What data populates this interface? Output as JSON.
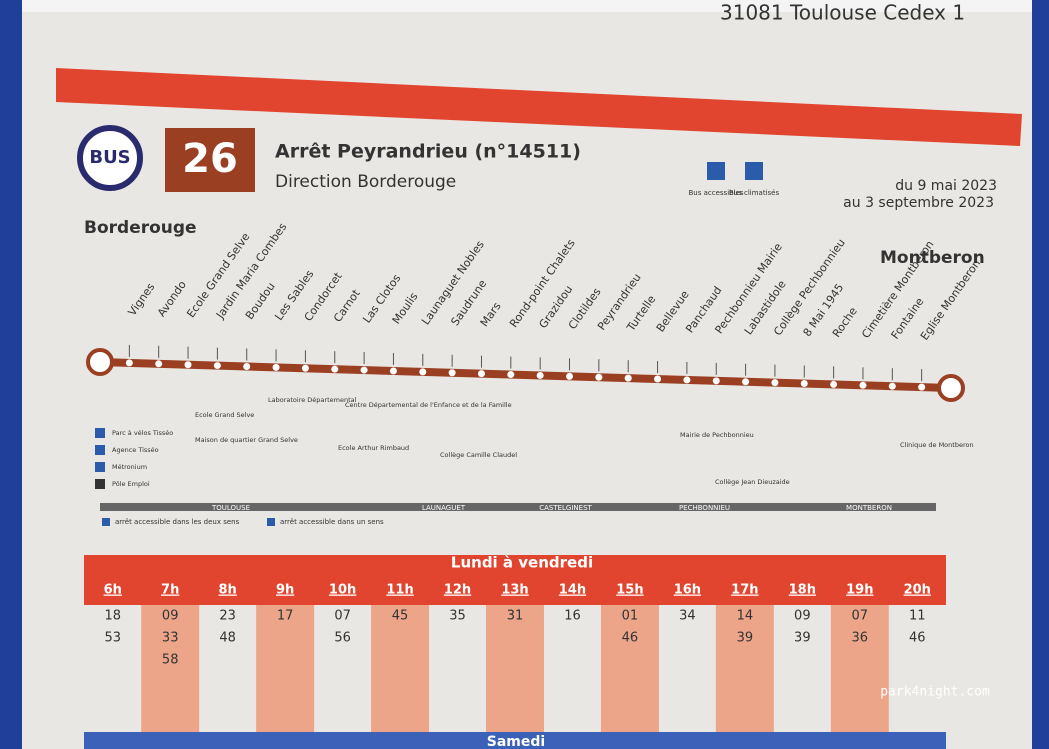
{
  "header": {
    "address": "31081 Toulouse Cedex 1"
  },
  "line": {
    "bus_label": "BUS",
    "number": "26",
    "stop": "Arrêt Peyrandrieu (n°14511)",
    "direction": "Direction Borderouge",
    "icons": [
      "Bus accessibles",
      "Bus climatisés"
    ],
    "validity": [
      "du 9 mai 2023",
      "au 3 septembre 2023"
    ]
  },
  "termini": [
    "Borderouge",
    "Montberon"
  ],
  "stops": [
    "Vignes",
    "Avondo",
    "Ecole Grand Selve",
    "Jardin Maria Combes",
    "Boudou",
    "Les Sables",
    "Condorcet",
    "Carnot",
    "Las Clotos",
    "Moulis",
    "Launaguet Nobles",
    "Saudrune",
    "Mars",
    "Rond-point Chalets",
    "Grazidou",
    "Clotildes",
    "Peyrandrieu",
    "Turtelle",
    "Bellevue",
    "Panchaud",
    "Pechbonnieu Mairie",
    "Labastidole",
    "Collège Pechbonnieu",
    "8 Mai 1945",
    "Roche",
    "Cimetière Montberon",
    "Fontaine",
    "Eglise Montberon"
  ],
  "places": [
    "Laboratoire Départemental",
    "Centre Départemental de l'Enfance et de la Famille",
    "Ecole Grand Selve",
    "Maison de quartier Grand Selve",
    "Ecole Arthur Rimbaud",
    "Collège Camille Claudel",
    "Mairie de Pechbonnieu",
    "Collège Jean Dieuzaide",
    "Clinique de Montberon"
  ],
  "services": [
    "Parc à vélos Tisséo",
    "Agence Tisséo",
    "Métronium",
    "Pôle Emploi"
  ],
  "zones": [
    "TOULOUSE",
    "LAUNAGUET",
    "CASTELGINEST",
    "PECHBONNIEU",
    "MONTBERON"
  ],
  "legend": [
    "arrêt accessible dans les deux sens",
    "arrêt accessible dans un sens"
  ],
  "timetable": {
    "title": "Lundi à vendredi",
    "columns": [
      {
        "hour": "6h",
        "minutes": [
          "18",
          "53"
        ]
      },
      {
        "hour": "7h",
        "minutes": [
          "09",
          "33",
          "58"
        ]
      },
      {
        "hour": "8h",
        "minutes": [
          "23",
          "48"
        ]
      },
      {
        "hour": "9h",
        "minutes": [
          "17"
        ]
      },
      {
        "hour": "10h",
        "minutes": [
          "07",
          "56"
        ]
      },
      {
        "hour": "11h",
        "minutes": [
          "45"
        ]
      },
      {
        "hour": "12h",
        "minutes": [
          "35"
        ]
      },
      {
        "hour": "13h",
        "minutes": [
          "31"
        ]
      },
      {
        "hour": "14h",
        "minutes": [
          "16"
        ]
      },
      {
        "hour": "15h",
        "minutes": [
          "01",
          "46"
        ]
      },
      {
        "hour": "16h",
        "minutes": [
          "34"
        ]
      },
      {
        "hour": "17h",
        "minutes": [
          "14",
          "39"
        ]
      },
      {
        "hour": "18h",
        "minutes": [
          "09",
          "39"
        ]
      },
      {
        "hour": "19h",
        "minutes": [
          "07",
          "36"
        ]
      },
      {
        "hour": "20h",
        "minutes": [
          "11",
          "46"
        ]
      }
    ]
  },
  "footer": "Samedi",
  "watermark": "park4night.com"
}
